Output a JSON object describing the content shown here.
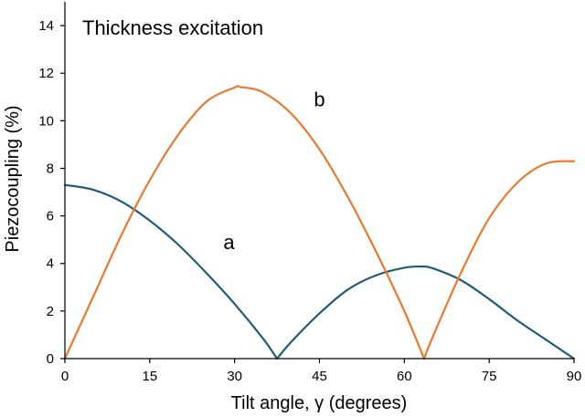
{
  "chart_data": {
    "type": "line",
    "title": "Thickness excitation",
    "xlabel": "Tilt angle, γ (degrees)",
    "ylabel": "Piezocoupling (%)",
    "xlim": [
      0,
      90
    ],
    "ylim": [
      0,
      15
    ],
    "xticks": [
      0,
      15,
      30,
      45,
      60,
      75,
      90
    ],
    "yticks": [
      0,
      2,
      4,
      6,
      8,
      10,
      12,
      14
    ],
    "grid": false,
    "legend": "none",
    "series": [
      {
        "name": "a",
        "color": "#1f5c7a",
        "x": [
          0,
          5,
          10,
          15,
          20,
          25,
          30,
          35,
          37.5,
          40,
          45,
          50,
          55,
          60,
          63,
          65,
          70,
          75,
          80,
          85,
          90
        ],
        "y": [
          7.3,
          7.1,
          6.6,
          5.8,
          4.8,
          3.6,
          2.3,
          0.85,
          0,
          0.7,
          1.9,
          2.9,
          3.5,
          3.82,
          3.87,
          3.8,
          3.3,
          2.5,
          1.6,
          0.8,
          0
        ]
      },
      {
        "name": "b",
        "color": "#e8792d",
        "x": [
          0,
          5,
          10,
          15,
          20,
          25,
          30,
          31,
          35,
          40,
          45,
          50,
          55,
          60,
          63.5,
          65,
          70,
          75,
          80,
          85,
          90
        ],
        "y": [
          0,
          2.6,
          5.2,
          7.5,
          9.4,
          10.8,
          11.4,
          11.42,
          11.2,
          10.3,
          8.8,
          6.8,
          4.5,
          2.0,
          0,
          0.9,
          3.6,
          5.9,
          7.4,
          8.2,
          8.3
        ]
      }
    ],
    "annotations": [
      {
        "text": "a",
        "x": 29,
        "y": 4.6
      },
      {
        "text": "b",
        "x": 45,
        "y": 10.6
      }
    ]
  }
}
